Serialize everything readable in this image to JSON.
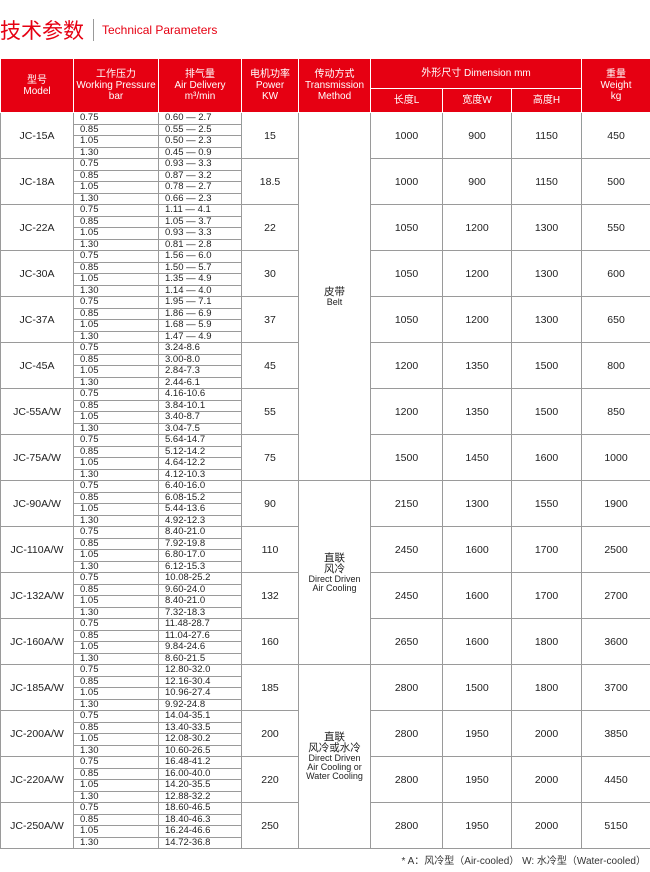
{
  "title": {
    "zh": "技术参数",
    "en": "Technical Parameters"
  },
  "header": {
    "model": [
      "型号",
      "Model"
    ],
    "pressure": [
      "工作压力",
      "Working Pressure",
      "bar"
    ],
    "delivery": [
      "排气量",
      "Air Delivery",
      "m³/min"
    ],
    "power": [
      "电机功率",
      "Power",
      "KW"
    ],
    "transmission": [
      "传动方式",
      "Transmission",
      "Method"
    ],
    "dimension": "外形尺寸 Dimension mm",
    "length": "长度L",
    "width": "宽度W",
    "height": "高度H",
    "weight": [
      "重量",
      "Weight",
      "kg"
    ]
  },
  "groups": [
    {
      "transmission": {
        "zh": [
          "皮带"
        ],
        "en": [
          "Belt"
        ]
      },
      "models": [
        {
          "name": "JC-15A",
          "pressure": [
            "0.75",
            "0.85",
            "1.05",
            "1.30"
          ],
          "delivery": [
            "0.60 — 2.7",
            "0.55 — 2.5",
            "0.50 — 2.3",
            "0.45 — 0.9"
          ],
          "power": "15",
          "length": "1000",
          "width": "900",
          "height": "1150",
          "weight": "450"
        },
        {
          "name": "JC-18A",
          "pressure": [
            "0.75",
            "0.85",
            "1.05",
            "1.30"
          ],
          "delivery": [
            "0.93 — 3.3",
            "0.87 — 3.2",
            "0.78 — 2.7",
            "0.66 — 2.3"
          ],
          "power": "18.5",
          "length": "1000",
          "width": "900",
          "height": "1150",
          "weight": "500"
        },
        {
          "name": "JC-22A",
          "pressure": [
            "0.75",
            "0.85",
            "1.05",
            "1.30"
          ],
          "delivery": [
            "1.11 — 4.1",
            "1.05 — 3.7",
            "0.93 — 3.3",
            "0.81 — 2.8"
          ],
          "power": "22",
          "length": "1050",
          "width": "1200",
          "height": "1300",
          "weight": "550"
        },
        {
          "name": "JC-30A",
          "pressure": [
            "0.75",
            "0.85",
            "1.05",
            "1.30"
          ],
          "delivery": [
            "1.56 — 6.0",
            "1.50 — 5.7",
            "1.35 — 4.9",
            "1.14 — 4.0"
          ],
          "power": "30",
          "length": "1050",
          "width": "1200",
          "height": "1300",
          "weight": "600"
        },
        {
          "name": "JC-37A",
          "pressure": [
            "0.75",
            "0.85",
            "1.05",
            "1.30"
          ],
          "delivery": [
            "1.95 — 7.1",
            "1.86 — 6.9",
            "1.68 — 5.9",
            "1.47 — 4.9"
          ],
          "power": "37",
          "length": "1050",
          "width": "1200",
          "height": "1300",
          "weight": "650"
        },
        {
          "name": "JC-45A",
          "pressure": [
            "0.75",
            "0.85",
            "1.05",
            "1.30"
          ],
          "delivery": [
            "3.24-8.6",
            "3.00-8.0",
            "2.84-7.3",
            "2.44-6.1"
          ],
          "power": "45",
          "length": "1200",
          "width": "1350",
          "height": "1500",
          "weight": "800"
        },
        {
          "name": "JC-55A/W",
          "pressure": [
            "0.75",
            "0.85",
            "1.05",
            "1.30"
          ],
          "delivery": [
            "4.16-10.6",
            "3.84-10.1",
            "3.40-8.7",
            "3.04-7.5"
          ],
          "power": "55",
          "length": "1200",
          "width": "1350",
          "height": "1500",
          "weight": "850"
        },
        {
          "name": "JC-75A/W",
          "pressure": [
            "0.75",
            "0.85",
            "1.05",
            "1.30"
          ],
          "delivery": [
            "5.64-14.7",
            "5.12-14.2",
            "4.64-12.2",
            "4.12-10.3"
          ],
          "power": "75",
          "length": "1500",
          "width": "1450",
          "height": "1600",
          "weight": "1000"
        }
      ]
    },
    {
      "transmission": {
        "zh": [
          "直联",
          "风冷"
        ],
        "en": [
          "Direct Driven",
          "Air Cooling"
        ]
      },
      "models": [
        {
          "name": "JC-90A/W",
          "pressure": [
            "0.75",
            "0.85",
            "1.05",
            "1.30"
          ],
          "delivery": [
            "6.40-16.0",
            "6.08-15.2",
            "5.44-13.6",
            "4.92-12.3"
          ],
          "power": "90",
          "length": "2150",
          "width": "1300",
          "height": "1550",
          "weight": "1900"
        },
        {
          "name": "JC-110A/W",
          "pressure": [
            "0.75",
            "0.85",
            "1.05",
            "1.30"
          ],
          "delivery": [
            "8.40-21.0",
            "7.92-19.8",
            "6.80-17.0",
            "6.12-15.3"
          ],
          "power": "110",
          "length": "2450",
          "width": "1600",
          "height": "1700",
          "weight": "2500"
        },
        {
          "name": "JC-132A/W",
          "pressure": [
            "0.75",
            "0.85",
            "1.05",
            "1.30"
          ],
          "delivery": [
            "10.08-25.2",
            "9.60-24.0",
            "8.40-21.0",
            "7.32-18.3"
          ],
          "power": "132",
          "length": "2450",
          "width": "1600",
          "height": "1700",
          "weight": "2700"
        },
        {
          "name": "JC-160A/W",
          "pressure": [
            "0.75",
            "0.85",
            "1.05",
            "1.30"
          ],
          "delivery": [
            "11.48-28.7",
            "11.04-27.6",
            "9.84-24.6",
            "8.60-21.5"
          ],
          "power": "160",
          "length": "2650",
          "width": "1600",
          "height": "1800",
          "weight": "3600"
        }
      ]
    },
    {
      "transmission": {
        "zh": [
          "直联",
          "风冷或水冷"
        ],
        "en": [
          "Direct Driven",
          "Air Cooling or",
          "Water Cooling"
        ]
      },
      "models": [
        {
          "name": "JC-185A/W",
          "pressure": [
            "0.75",
            "0.85",
            "1.05",
            "1.30"
          ],
          "delivery": [
            "12.80-32.0",
            "12.16-30.4",
            "10.96-27.4",
            "9.92-24.8"
          ],
          "power": "185",
          "length": "2800",
          "width": "1500",
          "height": "1800",
          "weight": "3700"
        },
        {
          "name": "JC-200A/W",
          "pressure": [
            "0.75",
            "0.85",
            "1.05",
            "1.30"
          ],
          "delivery": [
            "14.04-35.1",
            "13.40-33.5",
            "12.08-30.2",
            "10.60-26.5"
          ],
          "power": "200",
          "length": "2800",
          "width": "1950",
          "height": "2000",
          "weight": "3850"
        },
        {
          "name": "JC-220A/W",
          "pressure": [
            "0.75",
            "0.85",
            "1.05",
            "1.30"
          ],
          "delivery": [
            "16.48-41.2",
            "16.00-40.0",
            "14.20-35.5",
            "12.88-32.2"
          ],
          "power": "220",
          "length": "2800",
          "width": "1950",
          "height": "2000",
          "weight": "4450"
        },
        {
          "name": "JC-250A/W",
          "pressure": [
            "0.75",
            "0.85",
            "1.05",
            "1.30"
          ],
          "delivery": [
            "18.60-46.5",
            "18.40-46.3",
            "16.24-46.6",
            "14.72-36.8"
          ],
          "power": "250",
          "length": "2800",
          "width": "1950",
          "height": "2000",
          "weight": "5150"
        }
      ]
    }
  ],
  "footnote": "* A：风冷型（Air-cooled）   W: 水冷型（Water-cooled）"
}
